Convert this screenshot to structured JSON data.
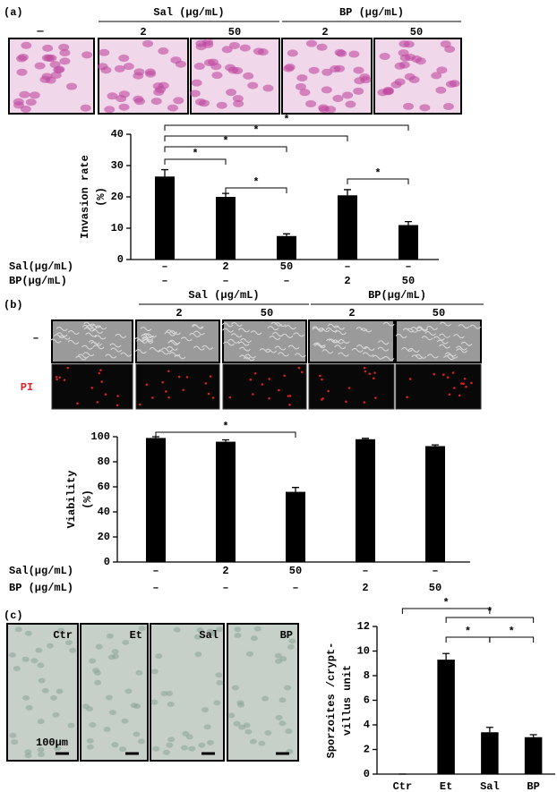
{
  "figure": {
    "a": {
      "label": "(a)",
      "control": "—",
      "groups": [
        {
          "title": "Sal (μg/mL)",
          "doses": [
            "2",
            "50"
          ]
        },
        {
          "title": "BP (μg/mL)",
          "doses": [
            "2",
            "50"
          ]
        }
      ]
    },
    "b": {
      "label": "(b)",
      "rows": [
        "–",
        "PI"
      ],
      "groups": [
        {
          "title": "Sal (μg/mL)",
          "doses": [
            "2",
            "50"
          ]
        },
        {
          "title": "BP(μg/mL)",
          "doses": [
            "2",
            "50"
          ]
        }
      ]
    },
    "c": {
      "label": "(c)",
      "images": [
        "Ctr",
        "Et",
        "Sal",
        "BP"
      ],
      "scale": "100μm"
    }
  },
  "chart_data": [
    {
      "type": "bar",
      "ylabel": [
        "Invasion rate",
        "(%)"
      ],
      "categories": [
        null,
        null,
        null,
        null,
        null
      ],
      "values": [
        26.5,
        20,
        7.5,
        20.5,
        11
      ],
      "error": [
        2.2,
        1.1,
        0.7,
        1.8,
        1.1
      ],
      "color": "#000000",
      "ylim": [
        0,
        40
      ],
      "yticks": [
        0,
        10,
        20,
        30,
        40
      ],
      "conditions": [
        {
          "name": "Sal(μg/mL)",
          "levels": [
            "–",
            "2",
            "50",
            "–",
            "–"
          ]
        },
        {
          "name": "BP(μg/mL)",
          "levels": [
            "–",
            "–",
            "–",
            "2",
            "50"
          ]
        }
      ],
      "annotations": [
        "*",
        "*",
        "*",
        "*",
        "*",
        "*"
      ]
    },
    {
      "type": "bar",
      "ylabel": [
        "Viability",
        "(%)"
      ],
      "categories": [
        null,
        null,
        null,
        null,
        null
      ],
      "values": [
        99,
        96,
        56,
        98,
        92.5
      ],
      "error": [
        1,
        1.5,
        3.5,
        0.7,
        1
      ],
      "color": "#000000",
      "ylim": [
        0,
        100
      ],
      "yticks": [
        0,
        20,
        40,
        60,
        80,
        100
      ],
      "conditions": [
        {
          "name": "Sal(μg/mL)",
          "levels": [
            "–",
            "2",
            "50",
            "–",
            "–"
          ]
        },
        {
          "name": "BP (μg/mL)",
          "levels": [
            "–",
            "–",
            "–",
            "2",
            "50"
          ]
        }
      ],
      "annotations": [
        "*"
      ]
    },
    {
      "type": "bar",
      "ylabel": [
        "Sporzoites /crypt-",
        "villus unit"
      ],
      "categories": [
        "Ctr",
        "Et",
        "Sal",
        "BP"
      ],
      "values": [
        0,
        9.3,
        3.4,
        3.0
      ],
      "error": [
        0,
        0.5,
        0.4,
        0.2
      ],
      "color": "#000000",
      "ylim": [
        0,
        12
      ],
      "yticks": [
        0,
        2,
        4,
        6,
        8,
        10,
        12
      ],
      "annotations": [
        "*",
        "*",
        "*",
        "*"
      ]
    }
  ]
}
